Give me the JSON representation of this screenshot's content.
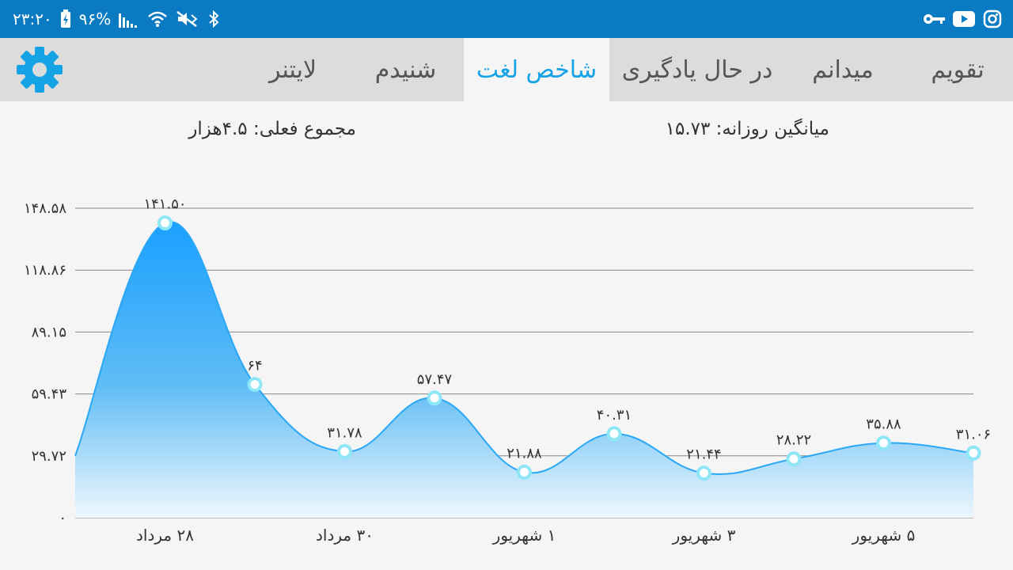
{
  "status_bar": {
    "time": "۲۳:۲۰",
    "battery": "۹۶%",
    "icons_left": [
      "battery-charging-icon",
      "signal-icon",
      "wifi-icon",
      "mute-icon",
      "bluetooth-icon"
    ],
    "icons_right": [
      "key-icon",
      "youtube-icon",
      "instagram-icon"
    ]
  },
  "tabs": [
    {
      "label": "تقویم",
      "active": false
    },
    {
      "label": "میدانم",
      "active": false
    },
    {
      "label": "در حال یادگیری",
      "active": false
    },
    {
      "label": "شاخص لغت",
      "active": true
    },
    {
      "label": "شنیدم",
      "active": false
    },
    {
      "label": "لایتنر",
      "active": false
    }
  ],
  "summary": {
    "daily_average": "میانگین روزانه: ۱۵.۷۳",
    "total": "مجموع فعلی: ۴.۵هزار"
  },
  "colors": {
    "status_bar": "#0a7bc2",
    "accent": "#16a3e6",
    "line": "#2aa8f5",
    "point": "#8ee6f7"
  },
  "chart_data": {
    "type": "area",
    "y_ticks": [
      "۰",
      "۲۹.۷۲",
      "۵۹.۴۳",
      "۸۹.۱۵",
      "۱۱۸.۸۶",
      "۱۴۸.۵۸"
    ],
    "y_tick_values": [
      0,
      29.72,
      59.43,
      89.15,
      118.86,
      148.58
    ],
    "ylim": [
      0,
      148.58
    ],
    "x_tick_labels": [
      "۲۸ مرداد",
      "۳۰ مرداد",
      "۱ شهریور",
      "۳ شهریور",
      "۵ شهریور"
    ],
    "x_tick_index": [
      1,
      3,
      5,
      7,
      9
    ],
    "points": [
      {
        "y": 29.72,
        "label": ""
      },
      {
        "y": 141.5,
        "label": "۱۴۱.۵۰"
      },
      {
        "y": 64,
        "label": "۶۴"
      },
      {
        "y": 31.78,
        "label": "۳۱.۷۸"
      },
      {
        "y": 57.47,
        "label": "۵۷.۴۷"
      },
      {
        "y": 21.88,
        "label": "۲۱.۸۸"
      },
      {
        "y": 40.31,
        "label": "۴۰.۳۱"
      },
      {
        "y": 21.44,
        "label": "۲۱.۴۴"
      },
      {
        "y": 28.22,
        "label": "۲۸.۲۲"
      },
      {
        "y": 35.88,
        "label": "۳۵.۸۸"
      },
      {
        "y": 31.06,
        "label": "۳۱.۰۶"
      }
    ],
    "grid": true
  }
}
